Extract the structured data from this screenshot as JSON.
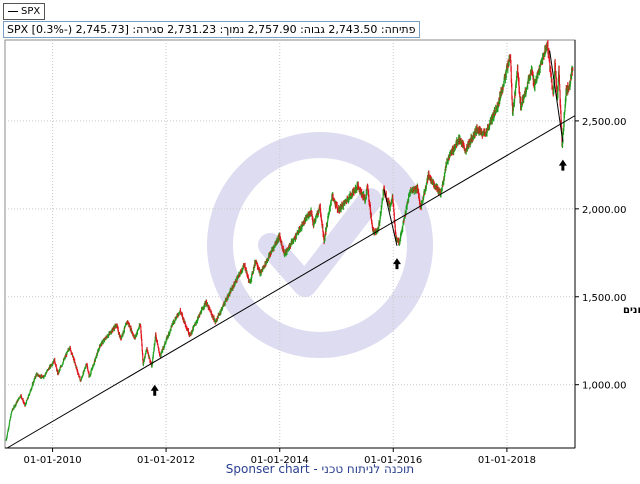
{
  "legend": {
    "series_label": "SPX"
  },
  "ohlc_line": "SPX [0.3%-) 2,745.73] :פתיחה: 2,743.50  גבוה: 2,757.90  נמוך: 2,731.23  סגירה",
  "annotation": "המדד נתמך על קו מגמה עולה כאשר בדרך היו תיקונים",
  "footer": "Sponser chart - תוכנה לניתוח טכני",
  "colors": {
    "up": "#1e9e1e",
    "down": "#e0141e",
    "trendline": "#000000",
    "grid": "#c8c8c8",
    "axis": "#000000",
    "watermark": "#dedcf0",
    "footer": "#2a3f8f"
  },
  "chart_data": {
    "type": "candlestick",
    "grid": true,
    "y_axis_position": "right",
    "ylim": [
      640,
      2960
    ],
    "xlim": [
      "2009-03-01",
      "2019-03-15"
    ],
    "y_ticks": [
      1000,
      1500,
      2000,
      2500
    ],
    "y_tick_labels": [
      "1,000.00",
      "1,500.00",
      "2,000.00",
      "2,500.00"
    ],
    "x_ticks": [
      "2010-01-01",
      "2012-01-01",
      "2014-01-01",
      "2016-01-01",
      "2018-01-01"
    ],
    "x_tick_labels": [
      "01-01-2010",
      "01-01-2012",
      "01-01-2014",
      "01-01-2016",
      "01-01-2018"
    ],
    "series": [
      {
        "name": "SPX",
        "points": [
          [
            "2009-03-09",
            680
          ],
          [
            "2009-04-15",
            850
          ],
          [
            "2009-06-12",
            940
          ],
          [
            "2009-07-10",
            880
          ],
          [
            "2009-09-20",
            1060
          ],
          [
            "2009-11-01",
            1040
          ],
          [
            "2010-01-15",
            1140
          ],
          [
            "2010-02-05",
            1060
          ],
          [
            "2010-04-23",
            1215
          ],
          [
            "2010-07-02",
            1020
          ],
          [
            "2010-08-09",
            1120
          ],
          [
            "2010-08-27",
            1045
          ],
          [
            "2010-11-05",
            1225
          ],
          [
            "2011-02-18",
            1340
          ],
          [
            "2011-03-16",
            1260
          ],
          [
            "2011-04-29",
            1360
          ],
          [
            "2011-06-15",
            1265
          ],
          [
            "2011-07-22",
            1345
          ],
          [
            "2011-08-08",
            1120
          ],
          [
            "2011-09-01",
            1205
          ],
          [
            "2011-10-03",
            1100
          ],
          [
            "2011-10-27",
            1285
          ],
          [
            "2011-11-25",
            1160
          ],
          [
            "2012-02-15",
            1350
          ],
          [
            "2012-04-02",
            1420
          ],
          [
            "2012-06-04",
            1280
          ],
          [
            "2012-09-14",
            1470
          ],
          [
            "2012-11-15",
            1355
          ],
          [
            "2013-01-15",
            1470
          ],
          [
            "2013-05-21",
            1680
          ],
          [
            "2013-06-24",
            1575
          ],
          [
            "2013-08-02",
            1710
          ],
          [
            "2013-08-30",
            1630
          ],
          [
            "2013-12-31",
            1845
          ],
          [
            "2014-02-03",
            1740
          ],
          [
            "2014-07-24",
            1990
          ],
          [
            "2014-08-07",
            1910
          ],
          [
            "2014-09-19",
            2010
          ],
          [
            "2014-10-15",
            1820
          ],
          [
            "2014-12-05",
            2075
          ],
          [
            "2015-01-15",
            1990
          ],
          [
            "2015-05-21",
            2130
          ],
          [
            "2015-07-08",
            2050
          ],
          [
            "2015-07-20",
            2130
          ],
          [
            "2015-08-25",
            1870
          ],
          [
            "2015-09-29",
            1880
          ],
          [
            "2015-11-03",
            2110
          ],
          [
            "2015-12-14",
            2010
          ],
          [
            "2015-12-29",
            2080
          ],
          [
            "2016-01-20",
            1830
          ],
          [
            "2016-02-11",
            1810
          ],
          [
            "2016-04-20",
            2100
          ],
          [
            "2016-06-08",
            2120
          ],
          [
            "2016-06-27",
            2000
          ],
          [
            "2016-08-15",
            2190
          ],
          [
            "2016-11-04",
            2085
          ],
          [
            "2016-12-13",
            2270
          ],
          [
            "2017-03-01",
            2400
          ],
          [
            "2017-04-13",
            2330
          ],
          [
            "2017-06-19",
            2450
          ],
          [
            "2017-08-18",
            2425
          ],
          [
            "2017-11-06",
            2590
          ],
          [
            "2018-01-26",
            2870
          ],
          [
            "2018-02-08",
            2530
          ],
          [
            "2018-03-12",
            2790
          ],
          [
            "2018-04-02",
            2580
          ],
          [
            "2018-06-12",
            2790
          ],
          [
            "2018-06-28",
            2700
          ],
          [
            "2018-09-20",
            2940
          ],
          [
            "2018-10-29",
            2640
          ],
          [
            "2018-11-07",
            2815
          ],
          [
            "2018-11-23",
            2630
          ],
          [
            "2018-12-03",
            2790
          ],
          [
            "2018-12-24",
            2350
          ],
          [
            "2019-01-18",
            2670
          ],
          [
            "2019-02-08",
            2700
          ],
          [
            "2019-03-01",
            2800
          ]
        ]
      }
    ],
    "trendline": {
      "start": [
        "2009-03-15",
        640
      ],
      "end": [
        "2019-03-15",
        2530
      ]
    },
    "arrows": [
      {
        "x": "2011-10-20",
        "y": 1000
      },
      {
        "x": "2016-01-25",
        "y": 1720
      },
      {
        "x": "2018-12-27",
        "y": 2280
      }
    ]
  }
}
